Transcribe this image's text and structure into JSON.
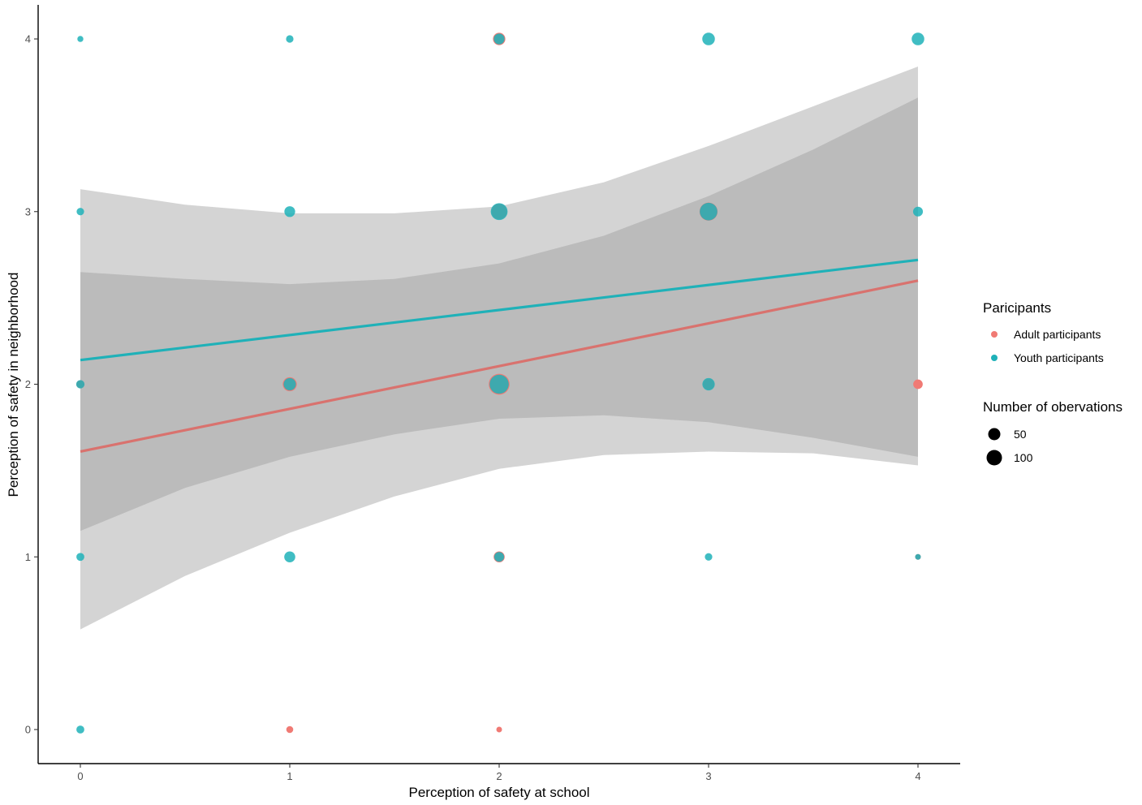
{
  "chart_data": {
    "type": "scatter",
    "title": "",
    "xlabel": "Perception of safety at school",
    "ylabel": "Perception of safety in neighborhood",
    "xlim": [
      -0.2,
      4.2
    ],
    "ylim": [
      -0.2,
      4.2
    ],
    "x_ticks": [
      0,
      1,
      2,
      3,
      4
    ],
    "y_ticks": [
      0,
      1,
      2,
      3,
      4
    ],
    "x_tick_labels": [
      "0",
      "1",
      "2",
      "3",
      "4"
    ],
    "y_tick_labels": [
      "0",
      "1",
      "2",
      "3",
      "4"
    ],
    "grid": false,
    "legend_placement": "right",
    "color_legend": {
      "title": "Paricipants",
      "entries": [
        {
          "label": "Adult participants",
          "color": "#f07a74"
        },
        {
          "label": "Youth participants",
          "color": "#1fb1b8"
        }
      ]
    },
    "size_legend": {
      "title": "Number of obervations",
      "entries": [
        {
          "label": "50",
          "n": 50
        },
        {
          "label": "100",
          "n": 100
        }
      ]
    },
    "series": [
      {
        "name": "Adult participants",
        "color": "#f07a74",
        "line_color": "#d9726e",
        "points": [
          {
            "x": 1,
            "y": 0,
            "n": 8
          },
          {
            "x": 2,
            "y": 0,
            "n": 4
          },
          {
            "x": 0,
            "y": 2,
            "n": 12
          },
          {
            "x": 1,
            "y": 2,
            "n": 55
          },
          {
            "x": 2,
            "y": 2,
            "n": 140
          },
          {
            "x": 2,
            "y": 4,
            "n": 40
          },
          {
            "x": 2,
            "y": 1,
            "n": 30
          },
          {
            "x": 3,
            "y": 3,
            "n": 100
          },
          {
            "x": 3,
            "y": 2,
            "n": 30
          },
          {
            "x": 4,
            "y": 2,
            "n": 20
          },
          {
            "x": 4,
            "y": 1,
            "n": 4
          },
          {
            "x": 2,
            "y": 3,
            "n": 70
          }
        ],
        "fit": {
          "x": [
            0,
            4
          ],
          "y": [
            1.61,
            2.6
          ]
        },
        "ribbon": {
          "x": [
            0,
            0.5,
            1,
            1.5,
            2,
            2.5,
            3,
            3.5,
            4
          ],
          "lower": [
            0.58,
            0.89,
            1.14,
            1.35,
            1.51,
            1.59,
            1.61,
            1.6,
            1.53
          ],
          "upper": [
            2.65,
            2.61,
            2.58,
            2.61,
            2.7,
            2.86,
            3.09,
            3.36,
            3.66
          ]
        }
      },
      {
        "name": "Youth participants",
        "color": "#1fb1b8",
        "line_color": "#1fb1b8",
        "points": [
          {
            "x": 0,
            "y": 0,
            "n": 12
          },
          {
            "x": 0,
            "y": 1,
            "n": 12
          },
          {
            "x": 0,
            "y": 2,
            "n": 14
          },
          {
            "x": 0,
            "y": 3,
            "n": 10
          },
          {
            "x": 0,
            "y": 4,
            "n": 5
          },
          {
            "x": 1,
            "y": 1,
            "n": 30
          },
          {
            "x": 1,
            "y": 2,
            "n": 40
          },
          {
            "x": 1,
            "y": 3,
            "n": 28
          },
          {
            "x": 1,
            "y": 4,
            "n": 10
          },
          {
            "x": 2,
            "y": 1,
            "n": 22
          },
          {
            "x": 2,
            "y": 2,
            "n": 115
          },
          {
            "x": 2,
            "y": 3,
            "n": 85
          },
          {
            "x": 2,
            "y": 4,
            "n": 28
          },
          {
            "x": 3,
            "y": 1,
            "n": 10
          },
          {
            "x": 3,
            "y": 2,
            "n": 40
          },
          {
            "x": 3,
            "y": 3,
            "n": 95
          },
          {
            "x": 3,
            "y": 4,
            "n": 42
          },
          {
            "x": 4,
            "y": 1,
            "n": 4
          },
          {
            "x": 4,
            "y": 3,
            "n": 22
          },
          {
            "x": 4,
            "y": 4,
            "n": 42
          }
        ],
        "fit": {
          "x": [
            0,
            4
          ],
          "y": [
            2.14,
            2.72
          ]
        },
        "ribbon": {
          "x": [
            0,
            0.5,
            1,
            1.5,
            2,
            2.5,
            3,
            3.5,
            4
          ],
          "lower": [
            1.15,
            1.4,
            1.58,
            1.71,
            1.8,
            1.82,
            1.78,
            1.69,
            1.58
          ],
          "upper": [
            3.13,
            3.04,
            2.99,
            2.99,
            3.03,
            3.17,
            3.38,
            3.61,
            3.84
          ]
        }
      }
    ]
  }
}
